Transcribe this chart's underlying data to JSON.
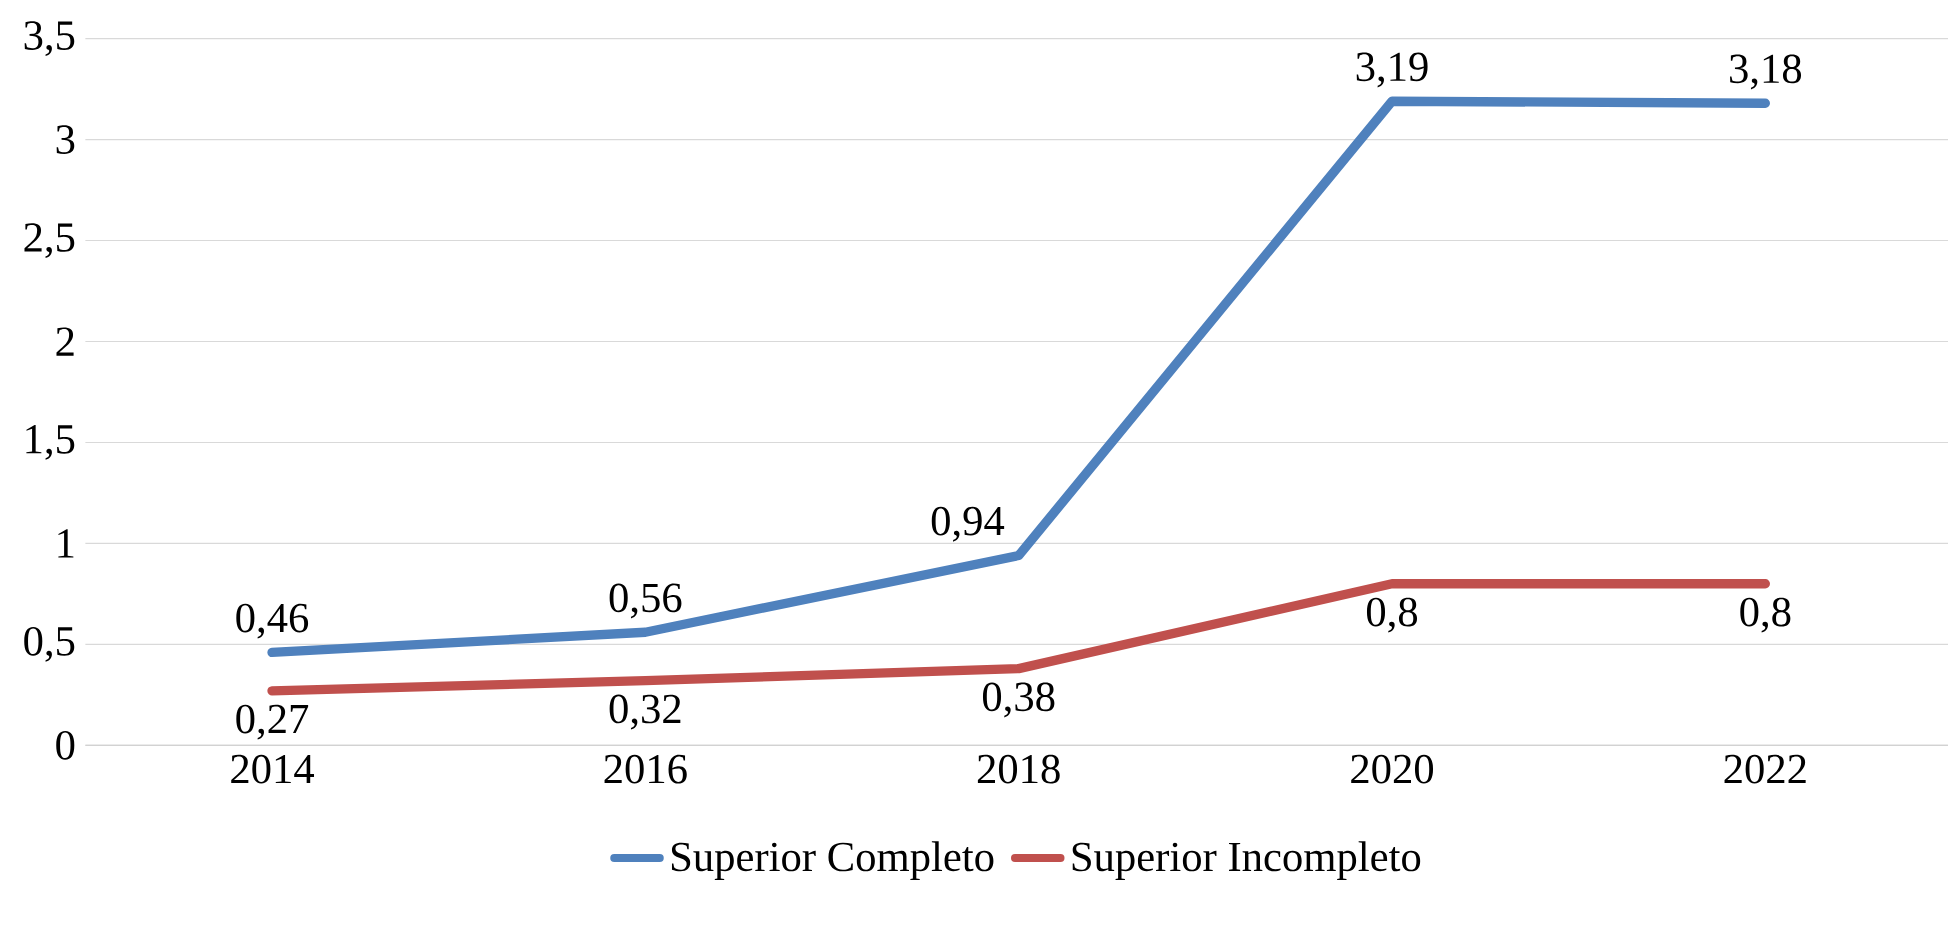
{
  "chart_data": {
    "type": "line",
    "categories": [
      "2014",
      "2016",
      "2018",
      "2020",
      "2022"
    ],
    "series": [
      {
        "name": "Superior Completo",
        "color": "#4f81bd",
        "values": [
          0.46,
          0.56,
          0.94,
          3.19,
          3.18
        ],
        "value_labels": [
          "0,46",
          "0,56",
          "0,94",
          "3,19",
          "3,18"
        ]
      },
      {
        "name": "Superior Incompleto",
        "color": "#c0504d",
        "values": [
          0.27,
          0.32,
          0.38,
          0.8,
          0.8
        ],
        "value_labels": [
          "0,27",
          "0,32",
          "0,38",
          "0,8",
          "0,8"
        ]
      }
    ],
    "ylim": [
      0,
      3.5
    ],
    "yticks": [
      0,
      {
        "value": 0.5,
        "label": "0,5"
      },
      1,
      {
        "value": 1.5,
        "label": "1,5"
      },
      2,
      {
        "value": 2.5,
        "label": "2,5"
      },
      3,
      {
        "value": 3.5,
        "label": "3,5"
      }
    ],
    "grid": "y",
    "legend": "bottom",
    "marker": "none",
    "line_style": "solid"
  }
}
